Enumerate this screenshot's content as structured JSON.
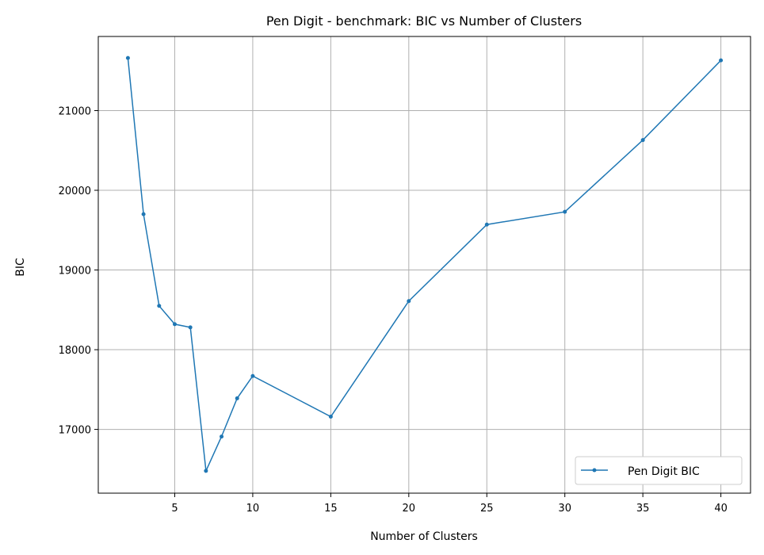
{
  "chart_data": {
    "type": "line",
    "title": "Pen Digit - benchmark: BIC vs Number of Clusters",
    "xlabel": "Number of Clusters",
    "ylabel": "BIC",
    "xlim": [
      0.1,
      41.9
    ],
    "ylim": [
      16200,
      21930
    ],
    "xticks": [
      5,
      10,
      15,
      20,
      25,
      30,
      35,
      40
    ],
    "yticks": [
      17000,
      18000,
      19000,
      20000,
      21000
    ],
    "grid": true,
    "legend_position": "lower right",
    "series": [
      {
        "name": "Pen Digit BIC",
        "color": "#1f77b4",
        "marker": "point",
        "x": [
          2,
          3,
          4,
          5,
          6,
          7,
          8,
          9,
          10,
          15,
          20,
          25,
          30,
          35,
          40
        ],
        "y": [
          21660,
          19700,
          18550,
          18320,
          18280,
          16480,
          16910,
          17390,
          17670,
          17160,
          18610,
          19570,
          19730,
          20630,
          21630
        ]
      }
    ]
  }
}
